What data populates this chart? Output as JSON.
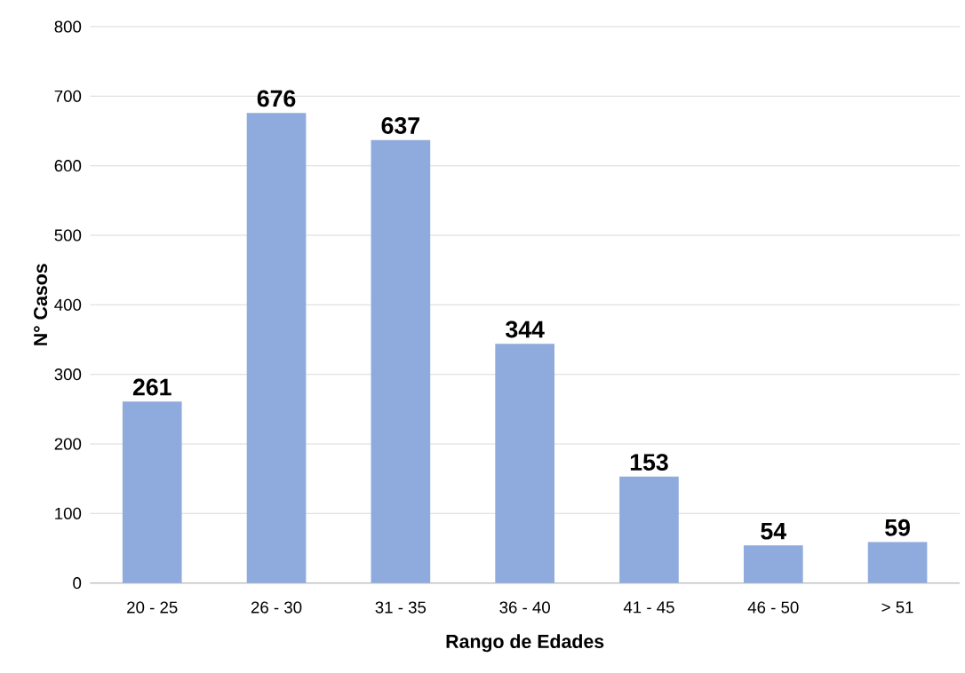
{
  "chart_data": {
    "type": "bar",
    "xlabel": "Rango de Edades",
    "ylabel": "N° Casos",
    "categories": [
      "20 - 25",
      "26 - 30",
      "31 - 35",
      "36 - 40",
      "41 - 45",
      "46 - 50",
      "> 51"
    ],
    "values": [
      261,
      676,
      637,
      344,
      153,
      54,
      59
    ],
    "color": "#8faadc",
    "ylim": [
      0,
      800
    ],
    "yticks": [
      0,
      100,
      200,
      300,
      400,
      500,
      600,
      700,
      800
    ],
    "grid": "y",
    "data_labels": true
  }
}
